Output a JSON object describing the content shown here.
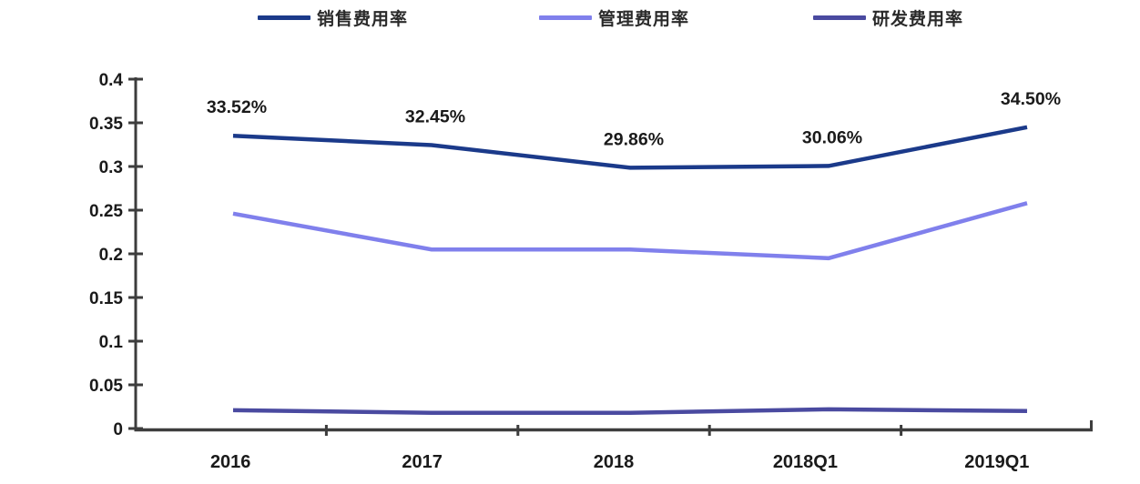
{
  "chart_data": {
    "type": "line",
    "title": "",
    "xlabel": "",
    "ylabel": "",
    "grid": false,
    "legend_position": "top",
    "categories": [
      "2016",
      "2017",
      "2018",
      "2018Q1",
      "2019Q1"
    ],
    "ylim": [
      0,
      0.4
    ],
    "yticks": [
      0,
      0.05,
      0.1,
      0.15,
      0.2,
      0.25,
      0.3,
      0.35,
      0.4
    ],
    "ytick_labels": [
      "0",
      "0.05",
      "0.1",
      "0.15",
      "0.2",
      "0.25",
      "0.3",
      "0.35",
      "0.4"
    ],
    "series": [
      {
        "name": "销售费用率",
        "color": "#1B3A8A",
        "values": [
          0.3352,
          0.3245,
          0.2986,
          0.3006,
          0.345
        ],
        "labels": [
          "33.52%",
          "32.45%",
          "29.86%",
          "30.06%",
          "34.50%"
        ]
      },
      {
        "name": "管理费用率",
        "color": "#8080EC",
        "values": [
          0.246,
          0.205,
          0.205,
          0.195,
          0.258
        ]
      },
      {
        "name": "研发费用率",
        "color": "#4A4AA0",
        "values": [
          0.021,
          0.018,
          0.018,
          0.022,
          0.02
        ]
      }
    ],
    "axis_color": "#3d3d3d"
  }
}
